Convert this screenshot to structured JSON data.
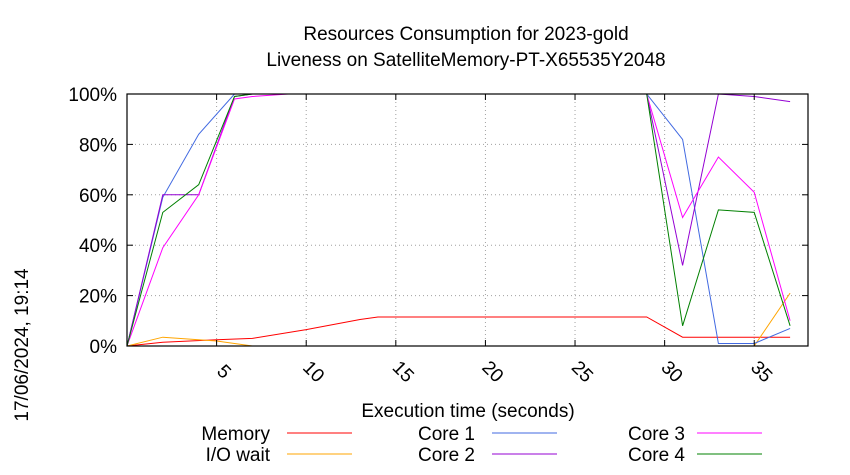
{
  "chart_data": {
    "type": "line",
    "title_line1": "Resources Consumption for 2023-gold",
    "title_line2": "Liveness on SatelliteMemory-PT-X65535Y2048",
    "xlabel": "Execution time (seconds)",
    "ylabel": "",
    "side_timestamp": "17/06/2024, 19:14",
    "xlim": [
      0,
      38
    ],
    "ylim": [
      0,
      100
    ],
    "xticks": [
      5,
      10,
      15,
      20,
      25,
      30,
      35
    ],
    "yticks": [
      0,
      20,
      40,
      60,
      80,
      100
    ],
    "ytick_labels": [
      "0%",
      "20%",
      "40%",
      "60%",
      "80%",
      "100%"
    ],
    "grid": true,
    "legend_position": "bottom",
    "series": [
      {
        "name": "Memory",
        "color": "#ff0000",
        "x": [
          0,
          2,
          5,
          7,
          10,
          13,
          14,
          15,
          20,
          25,
          29,
          31,
          33,
          35,
          37
        ],
        "y": [
          0,
          1.5,
          2.5,
          3,
          6.5,
          10.5,
          11.5,
          11.5,
          11.5,
          11.5,
          11.5,
          3.5,
          3.5,
          3.5,
          3.5
        ]
      },
      {
        "name": "I/O wait",
        "color": "#ffa500",
        "x": [
          0,
          2,
          5,
          7,
          9,
          29,
          31,
          33,
          35,
          37
        ],
        "y": [
          0,
          3.5,
          2,
          0,
          0,
          0,
          0,
          0,
          0,
          21
        ]
      },
      {
        "name": "Core 1",
        "color": "#4169e1",
        "x": [
          0,
          2,
          4,
          6,
          7,
          9,
          29,
          31,
          33,
          35,
          37
        ],
        "y": [
          0,
          59,
          84,
          100,
          100,
          100,
          100,
          82,
          1,
          1,
          7
        ]
      },
      {
        "name": "Core 2",
        "color": "#9400d3",
        "x": [
          0,
          2,
          4,
          6,
          7,
          9,
          29,
          31,
          33,
          35,
          37
        ],
        "y": [
          0,
          60,
          60,
          99,
          100,
          100,
          100,
          32,
          100,
          99,
          97
        ]
      },
      {
        "name": "Core 3",
        "color": "#ff00ff",
        "x": [
          0,
          2,
          4,
          6,
          7,
          9,
          29,
          31,
          33,
          35,
          37
        ],
        "y": [
          0,
          39,
          60,
          98,
          99,
          100,
          100,
          51,
          75,
          61,
          10
        ]
      },
      {
        "name": "Core 4",
        "color": "#008000",
        "x": [
          0,
          2,
          4,
          6,
          7,
          9,
          29,
          31,
          33,
          35,
          37
        ],
        "y": [
          0,
          53,
          64,
          99,
          100,
          100,
          100,
          8,
          54,
          53,
          8
        ]
      }
    ]
  }
}
